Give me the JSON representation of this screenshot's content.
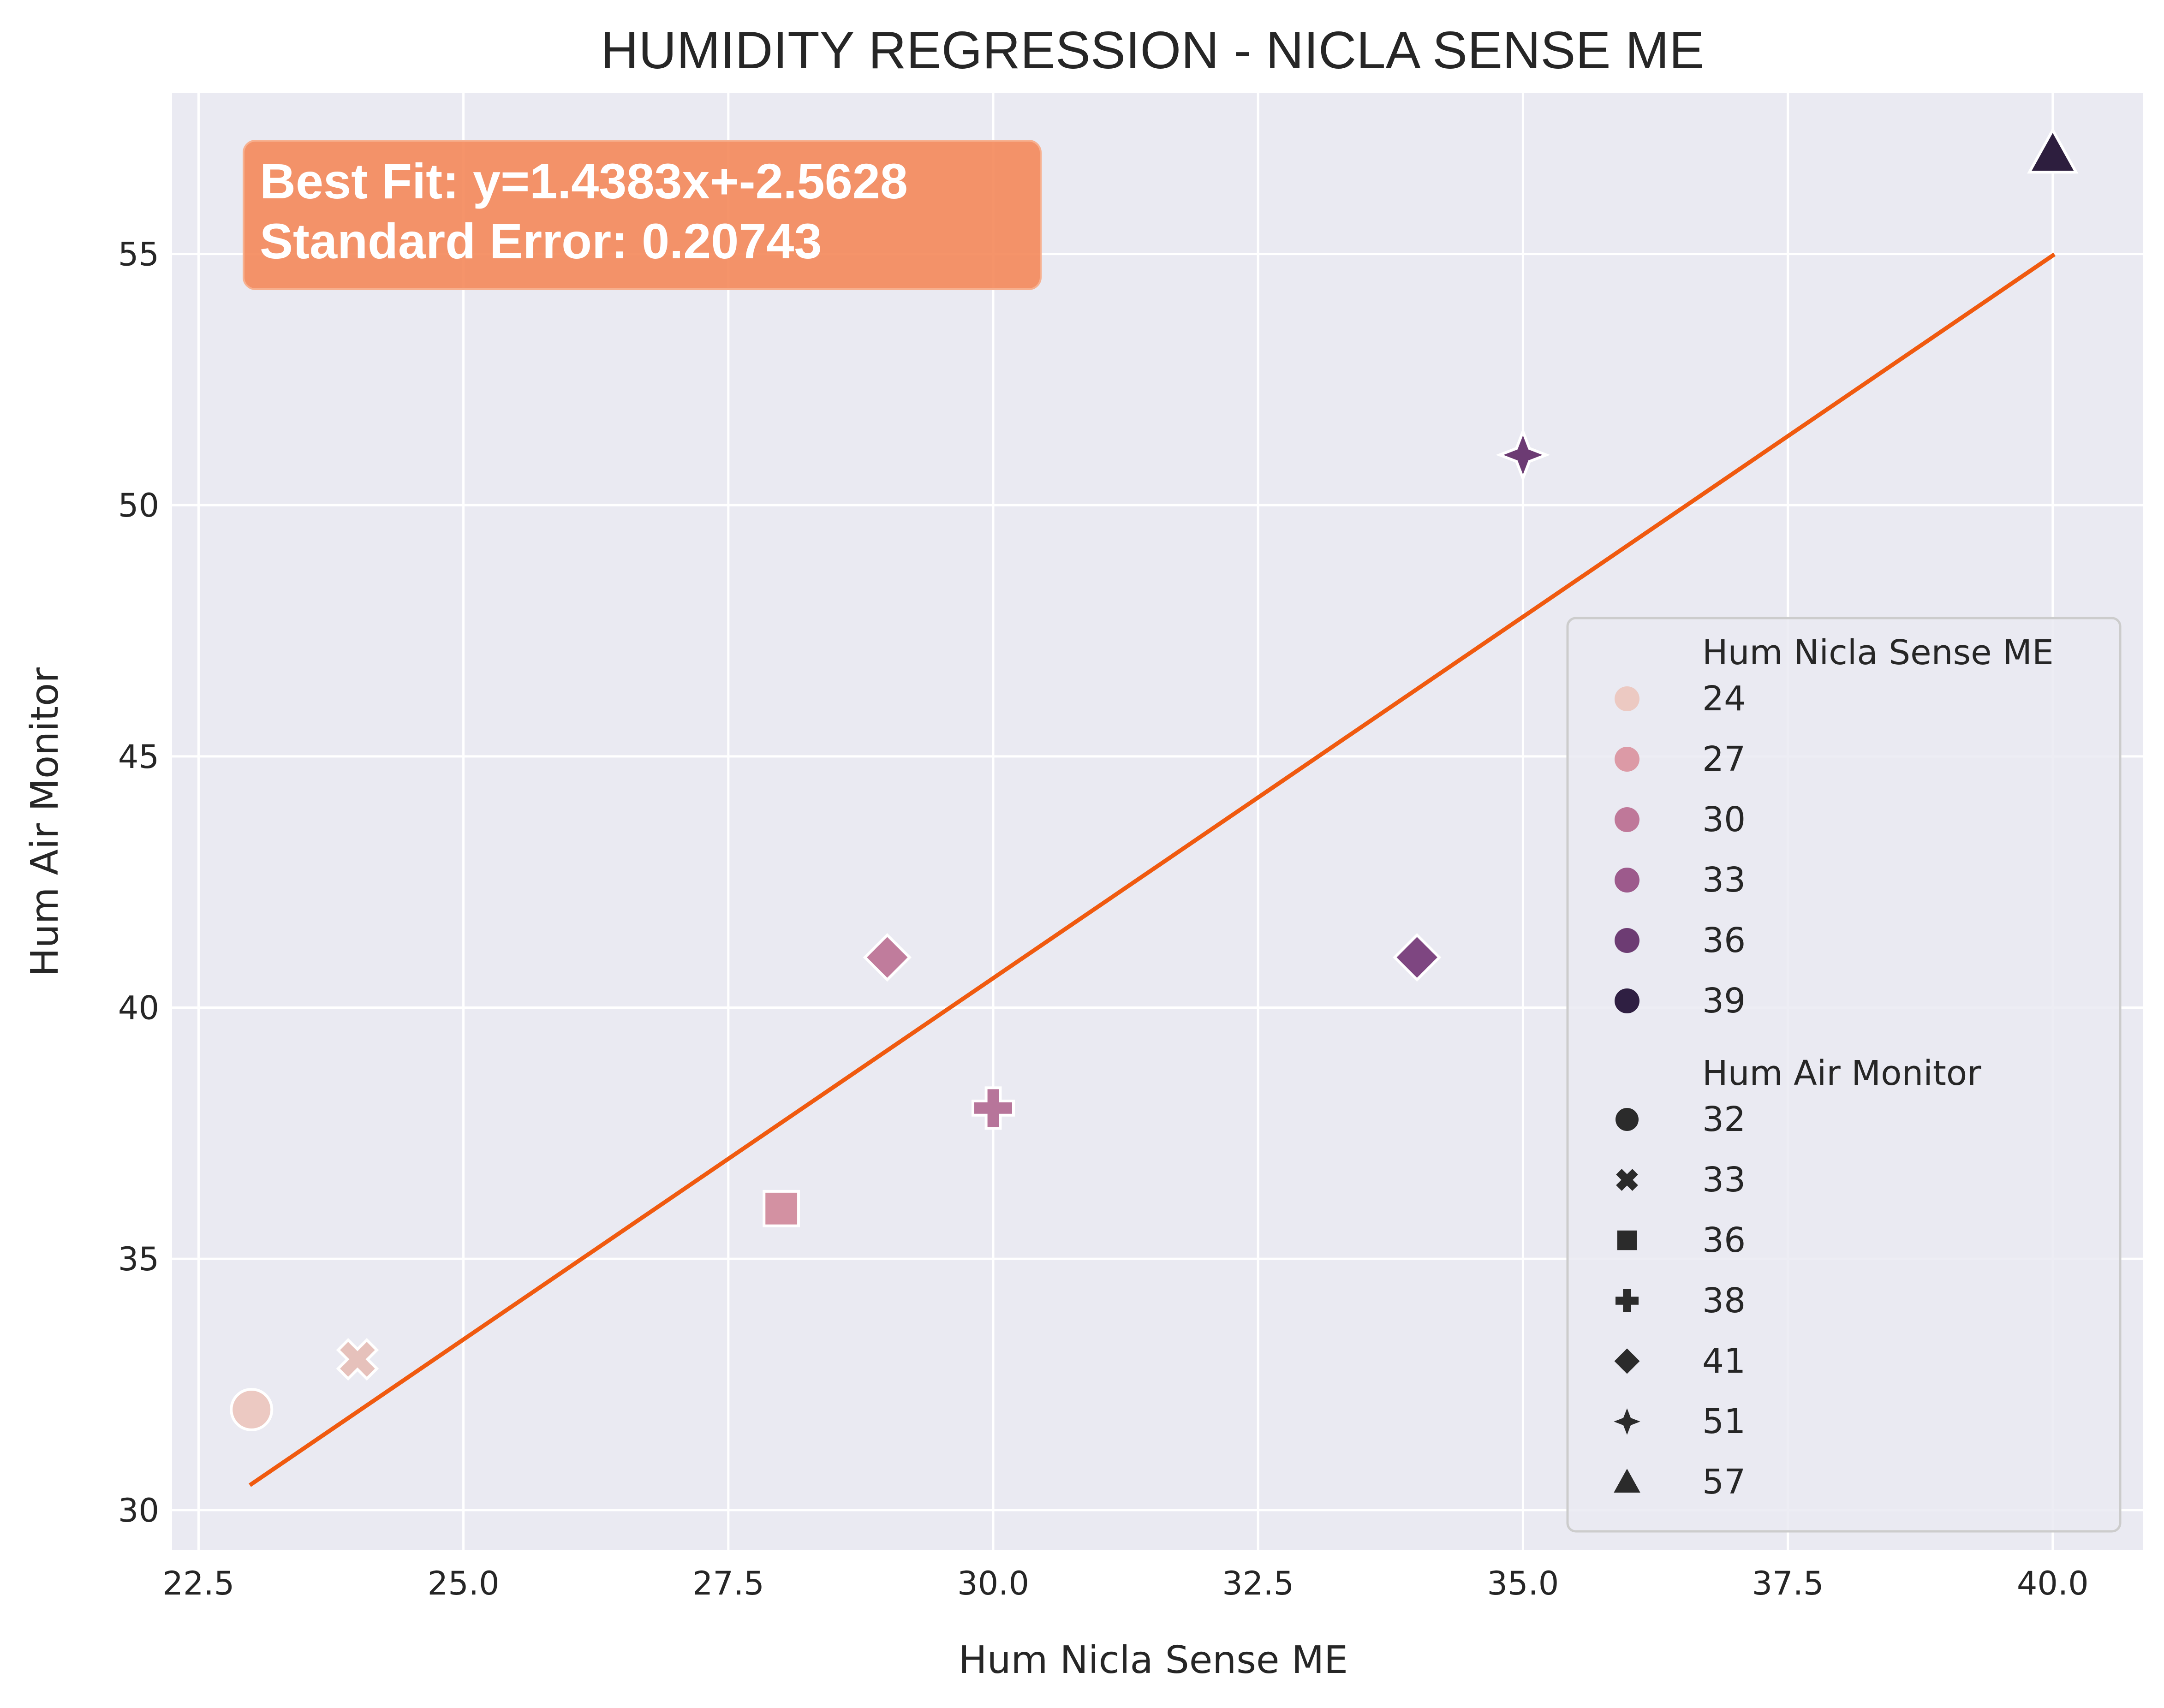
{
  "chart_data": {
    "type": "scatter",
    "title": "HUMIDITY REGRESSION - NICLA SENSE ME",
    "xlabel": "Hum Nicla Sense ME",
    "ylabel": "Hum Air Monitor",
    "xlim": [
      22.25,
      40.85
    ],
    "ylim": [
      29.2,
      58.2
    ],
    "xticks": [
      22.5,
      25.0,
      27.5,
      30.0,
      32.5,
      35.0,
      37.5,
      40.0
    ],
    "xtick_labels": [
      "22.5",
      "25.0",
      "27.5",
      "30.0",
      "32.5",
      "35.0",
      "37.5",
      "40.0"
    ],
    "yticks": [
      30,
      35,
      40,
      45,
      50,
      55
    ],
    "ytick_labels": [
      "30",
      "35",
      "40",
      "45",
      "50",
      "55"
    ],
    "grid": true,
    "background": "#eaeaf2",
    "points": [
      {
        "x": 23,
        "y": 32,
        "marker": "circle",
        "color": "#ecc9c2"
      },
      {
        "x": 24,
        "y": 33,
        "marker": "x",
        "color": "#e6c1bb"
      },
      {
        "x": 28,
        "y": 36,
        "marker": "square",
        "color": "#d391a2"
      },
      {
        "x": 29,
        "y": 41,
        "marker": "diamond",
        "color": "#c07c9c"
      },
      {
        "x": 30,
        "y": 38,
        "marker": "plus",
        "color": "#b7759a"
      },
      {
        "x": 34,
        "y": 41,
        "marker": "diamond",
        "color": "#7e4681"
      },
      {
        "x": 35,
        "y": 51,
        "marker": "star4",
        "color": "#6c3b73"
      },
      {
        "x": 40,
        "y": 57,
        "marker": "triangle",
        "color": "#2d1e3e"
      }
    ],
    "fit_line": {
      "slope": 1.4383,
      "intercept": -2.5628,
      "x_range": [
        23,
        40
      ],
      "color": "#f05a0f"
    },
    "annotation": {
      "lines": [
        "Best Fit: y=1.4383x+-2.5628",
        "Standard Error: 0.20743"
      ],
      "box_color": "#f4885a",
      "placement": "top-left"
    },
    "legend": {
      "placement": "lower-right",
      "hue_title": "Hum Nicla Sense ME",
      "hue_entries": [
        {
          "label": "24",
          "color": "#ecc9c2"
        },
        {
          "label": "27",
          "color": "#dc9aa6"
        },
        {
          "label": "30",
          "color": "#bf7899"
        },
        {
          "label": "33",
          "color": "#9d5a8c"
        },
        {
          "label": "36",
          "color": "#6d3c73"
        },
        {
          "label": "39",
          "color": "#2f1f42"
        }
      ],
      "style_title": "Hum Air Monitor",
      "style_entries": [
        {
          "label": "32",
          "marker": "circle"
        },
        {
          "label": "33",
          "marker": "x"
        },
        {
          "label": "36",
          "marker": "square"
        },
        {
          "label": "38",
          "marker": "plus"
        },
        {
          "label": "41",
          "marker": "diamond"
        },
        {
          "label": "51",
          "marker": "star4"
        },
        {
          "label": "57",
          "marker": "triangle"
        }
      ]
    }
  }
}
